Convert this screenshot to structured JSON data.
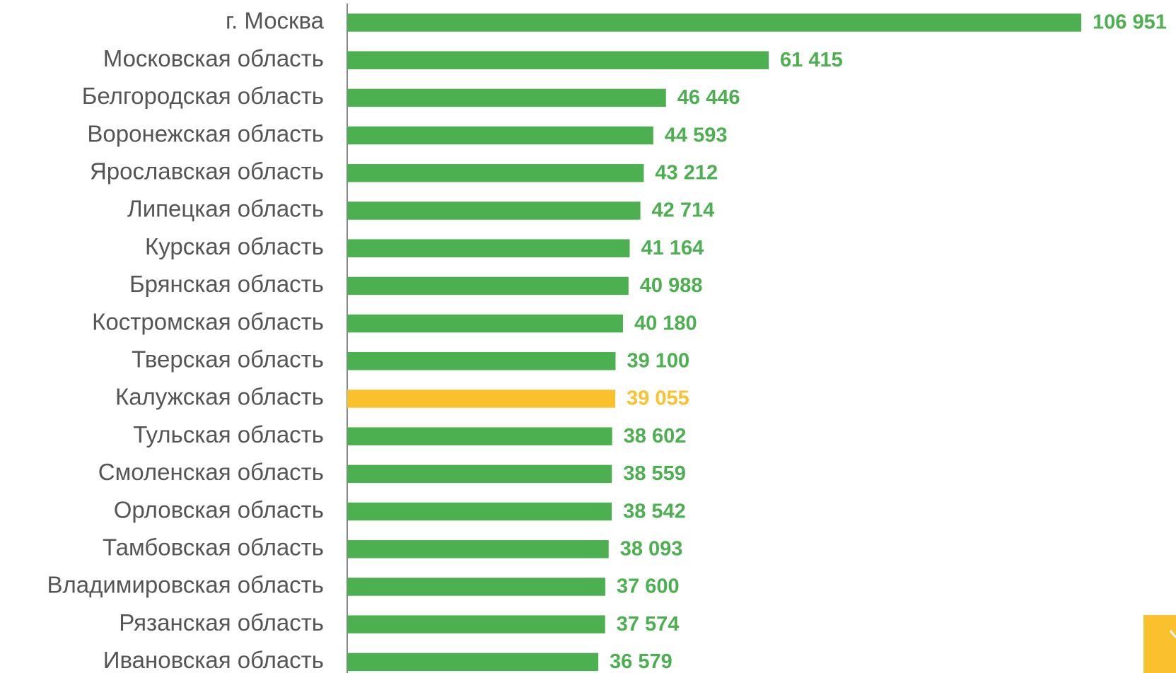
{
  "chart_data": {
    "type": "bar",
    "orientation": "horizontal",
    "categories": [
      "г. Москва",
      "Московская область",
      "Белгородская область",
      "Воронежская область",
      "Ярославская область",
      "Липецкая область",
      "Курская область",
      "Брянская область",
      "Костромская область",
      "Тверская область",
      "Калужская область",
      "Тульская область",
      "Смоленская область",
      "Орловская область",
      "Тамбовская область",
      "Владимировская область",
      "Рязанская область",
      "Ивановская область"
    ],
    "values": [
      106951,
      61415,
      46446,
      44593,
      43212,
      42714,
      41164,
      40988,
      40180,
      39100,
      39055,
      38602,
      38559,
      38542,
      38093,
      37600,
      37574,
      36579
    ],
    "value_labels": [
      "106 951",
      "61 415",
      "46 446",
      "44 593",
      "43 212",
      "42 714",
      "41 164",
      "40 988",
      "40 180",
      "39 100",
      "39 055",
      "38 602",
      "38 559",
      "38 542",
      "38 093",
      "37 600",
      "37 574",
      "36 579"
    ],
    "colors": [
      "#4caf50",
      "#4caf50",
      "#4caf50",
      "#4caf50",
      "#4caf50",
      "#4caf50",
      "#4caf50",
      "#4caf50",
      "#4caf50",
      "#4caf50",
      "#fbc02d",
      "#4caf50",
      "#4caf50",
      "#4caf50",
      "#4caf50",
      "#4caf50",
      "#4caf50",
      "#4caf50"
    ]
  }
}
